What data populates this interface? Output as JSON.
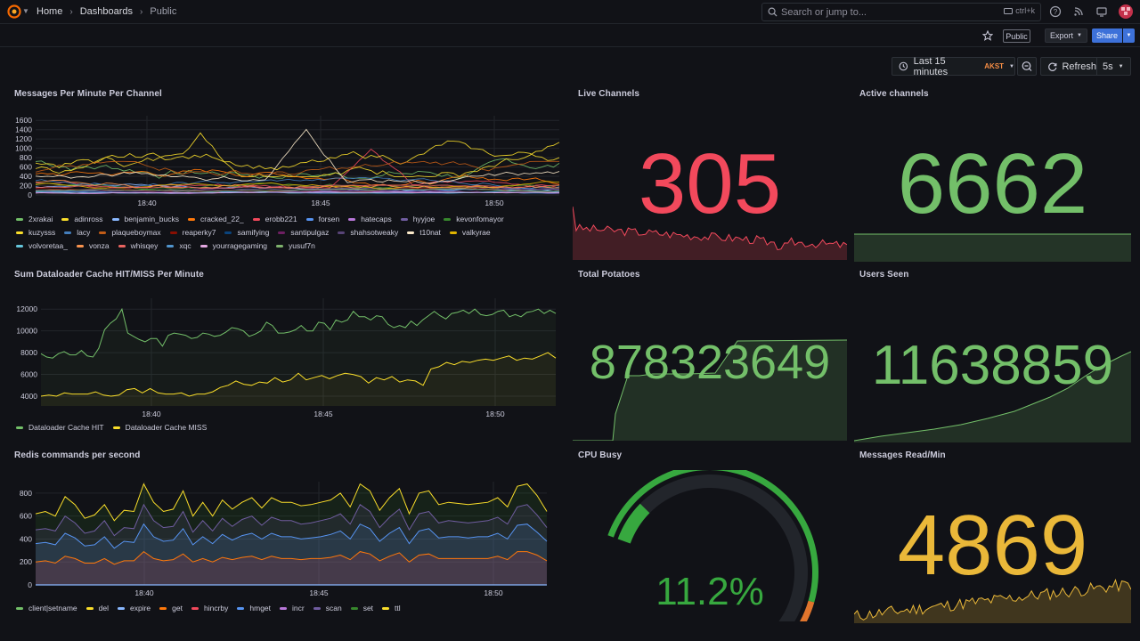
{
  "header": {
    "breadcrumbs": [
      "Home",
      "Dashboards",
      "Public"
    ],
    "search_placeholder": "Search or jump to...",
    "search_shortcut": "ctrl+k",
    "public_badge": "Public",
    "export_label": "Export",
    "share_label": "Share"
  },
  "toolbar": {
    "time_range": "Last 15 minutes",
    "timezone": "AKST",
    "refresh_label": "Refresh",
    "interval": "5s"
  },
  "colors": {
    "green": "#73bf69",
    "red": "#f2495c",
    "yellow": "#fade2a",
    "orange_yellow": "#eab839"
  },
  "panels": {
    "messages_per_minute": {
      "title": "Messages Per Minute Per Channel",
      "legend": [
        {
          "name": "2xrakai",
          "color": "#73bf69"
        },
        {
          "name": "adinross",
          "color": "#fade2a"
        },
        {
          "name": "benjamin_bucks",
          "color": "#8ab8ff"
        },
        {
          "name": "cracked_22_",
          "color": "#ff780a"
        },
        {
          "name": "erobb221",
          "color": "#f2495c"
        },
        {
          "name": "forsen",
          "color": "#5794f2"
        },
        {
          "name": "hatecaps",
          "color": "#b877d9"
        },
        {
          "name": "hyyjoe",
          "color": "#705da0"
        },
        {
          "name": "kevonfomayor",
          "color": "#37872d"
        },
        {
          "name": "kuzysss",
          "color": "#fade2a"
        },
        {
          "name": "lacy",
          "color": "#447ebc"
        },
        {
          "name": "plaqueboymax",
          "color": "#c15c17"
        },
        {
          "name": "reaperky7",
          "color": "#890f02"
        },
        {
          "name": "samifying",
          "color": "#0a437c"
        },
        {
          "name": "santipulgaz",
          "color": "#6d1f62"
        },
        {
          "name": "shahsotweaky",
          "color": "#584477"
        },
        {
          "name": "t10nat",
          "color": "#fceaca"
        },
        {
          "name": "valkyrae",
          "color": "#e0b400"
        },
        {
          "name": "volvoretaa_",
          "color": "#65c5db"
        },
        {
          "name": "vonza",
          "color": "#f9934e"
        },
        {
          "name": "whisqey",
          "color": "#ea6460"
        },
        {
          "name": "xqc",
          "color": "#5195ce"
        },
        {
          "name": "yourragegaming",
          "color": "#e5a8e2"
        },
        {
          "name": "yusuf7n",
          "color": "#7eb26d"
        }
      ]
    },
    "live_channels": {
      "title": "Live Channels",
      "value": "305"
    },
    "active_channels": {
      "title": "Active channels",
      "value": "6662"
    },
    "dataloader": {
      "title": "Sum Dataloader Cache HIT/MISS Per Minute",
      "legend": [
        {
          "name": "Dataloader Cache HIT",
          "color": "#73bf69"
        },
        {
          "name": "Dataloader Cache MISS",
          "color": "#fade2a"
        }
      ]
    },
    "total_potatoes": {
      "title": "Total Potatoes",
      "value": "878323649"
    },
    "users_seen": {
      "title": "Users Seen",
      "value": "11638859"
    },
    "redis": {
      "title": "Redis commands per second",
      "legend": [
        {
          "name": "client|setname",
          "color": "#73bf69"
        },
        {
          "name": "del",
          "color": "#fade2a"
        },
        {
          "name": "expire",
          "color": "#8ab8ff"
        },
        {
          "name": "get",
          "color": "#ff780a"
        },
        {
          "name": "hincrby",
          "color": "#f2495c"
        },
        {
          "name": "hmget",
          "color": "#5794f2"
        },
        {
          "name": "incr",
          "color": "#b877d9"
        },
        {
          "name": "scan",
          "color": "#705da0"
        },
        {
          "name": "set",
          "color": "#37872d"
        },
        {
          "name": "ttl",
          "color": "#fade2a"
        }
      ]
    },
    "cpu_busy": {
      "title": "CPU Busy",
      "value": "11.2%",
      "fraction": 0.112
    },
    "messages_read": {
      "title": "Messages Read/Min",
      "value": "4869"
    }
  },
  "chart_data": [
    {
      "type": "line",
      "title": "Messages Per Minute Per Channel",
      "x_ticks": [
        "18:40",
        "18:45",
        "18:50"
      ],
      "y_ticks": [
        0,
        200,
        400,
        600,
        800,
        1000,
        1200,
        1400,
        1600
      ],
      "ylim": [
        0,
        1700
      ]
    },
    {
      "type": "line",
      "title": "Sum Dataloader Cache HIT/MISS Per Minute",
      "x_ticks": [
        "18:40",
        "18:45",
        "18:50"
      ],
      "y_ticks": [
        4000,
        6000,
        8000,
        10000,
        12000
      ],
      "ylim": [
        3100,
        13000
      ],
      "series": [
        {
          "name": "Dataloader Cache HIT",
          "values": [
            7900,
            7600,
            7500,
            7900,
            8100,
            7800,
            7800,
            8200,
            7700,
            7600,
            8400,
            10100,
            10700,
            11100,
            12000,
            9800,
            9500,
            9200,
            9000,
            9300,
            9300,
            8600,
            9600,
            9800,
            9700,
            9600,
            9300,
            9400,
            9800,
            9700,
            9500,
            9600,
            9900,
            10300,
            10200,
            10000,
            9500,
            9700,
            10000,
            10800,
            10500,
            9800,
            9800,
            9900,
            10100,
            10500,
            10000,
            10000,
            10800,
            10700,
            10100,
            11000,
            10800,
            11000,
            11800,
            11300,
            11300,
            11000,
            11400,
            11300,
            10600,
            10300,
            10500,
            10300,
            10900,
            10500,
            11000,
            11400,
            11800,
            11400,
            11100,
            11600,
            11700,
            11900,
            11600,
            12000,
            11500,
            11400,
            11500,
            11800,
            11900,
            11300,
            11500,
            11300,
            11700,
            11800,
            12000,
            11600,
            11900,
            11600
          ]
        },
        {
          "name": "Dataloader Cache MISS",
          "values": [
            4000,
            4100,
            4000,
            4300,
            4200,
            4200,
            4200,
            4400,
            4100,
            4000,
            4100,
            4600,
            4700,
            4300,
            4700,
            4300,
            4200,
            4200,
            4300,
            4000,
            4200,
            4200,
            4400,
            4800,
            5000,
            5400,
            5100,
            5000,
            5300,
            5200,
            5700,
            5300,
            5500,
            6100,
            5500,
            5700,
            5900,
            5600,
            5900,
            6100,
            6000,
            5800,
            5200,
            5700,
            5500,
            5800,
            5300,
            5500,
            5400,
            5000,
            6500,
            6700,
            7100,
            6900,
            7200,
            7100,
            7300,
            7400,
            7300,
            7500,
            7700,
            7300,
            7500,
            7400,
            7700,
            8000,
            7500
          ]
        }
      ]
    },
    {
      "type": "area",
      "title": "Redis commands per second",
      "x_ticks": [
        "18:40",
        "18:45",
        "18:50"
      ],
      "y_ticks": [
        0,
        200,
        400,
        600,
        800
      ],
      "ylim": [
        0,
        900
      ],
      "series": [
        {
          "name": "ttl",
          "values": [
            620,
            640,
            600,
            770,
            700,
            580,
            610,
            700,
            560,
            650,
            640,
            880,
            720,
            640,
            660,
            820,
            600,
            720,
            600,
            740,
            660,
            720,
            760,
            670,
            760,
            720,
            720,
            690,
            700,
            720,
            740,
            800,
            680,
            880,
            820,
            650,
            760,
            840,
            620,
            800,
            820,
            700,
            720,
            710,
            700,
            710,
            720,
            760,
            680,
            860,
            880,
            780,
            640
          ]
        },
        {
          "name": "scan",
          "values": [
            480,
            490,
            470,
            600,
            540,
            450,
            470,
            560,
            430,
            500,
            490,
            700,
            560,
            500,
            510,
            640,
            460,
            560,
            470,
            580,
            510,
            570,
            600,
            520,
            590,
            560,
            560,
            530,
            540,
            560,
            580,
            620,
            530,
            700,
            640,
            500,
            590,
            660,
            480,
            620,
            640,
            540,
            560,
            550,
            540,
            550,
            560,
            590,
            530,
            680,
            700,
            610,
            500
          ]
        },
        {
          "name": "hmget",
          "values": [
            360,
            370,
            350,
            450,
            410,
            340,
            350,
            420,
            320,
            380,
            370,
            530,
            420,
            380,
            390,
            490,
            350,
            420,
            360,
            440,
            390,
            430,
            450,
            400,
            450,
            420,
            420,
            400,
            410,
            420,
            440,
            470,
            400,
            530,
            490,
            380,
            450,
            500,
            360,
            470,
            490,
            410,
            420,
            420,
            410,
            420,
            420,
            450,
            400,
            520,
            530,
            460,
            380
          ]
        },
        {
          "name": "get",
          "values": [
            200,
            210,
            190,
            250,
            230,
            190,
            190,
            230,
            180,
            210,
            210,
            290,
            230,
            210,
            220,
            270,
            200,
            230,
            200,
            240,
            220,
            240,
            250,
            220,
            250,
            230,
            230,
            220,
            230,
            230,
            240,
            260,
            220,
            290,
            270,
            210,
            250,
            280,
            200,
            260,
            270,
            230,
            230,
            230,
            230,
            230,
            230,
            250,
            220,
            290,
            290,
            260,
            210
          ]
        }
      ]
    },
    {
      "type": "gauge",
      "title": "CPU Busy",
      "value": 11.2,
      "unit": "%",
      "range": [
        0,
        100
      ]
    }
  ]
}
